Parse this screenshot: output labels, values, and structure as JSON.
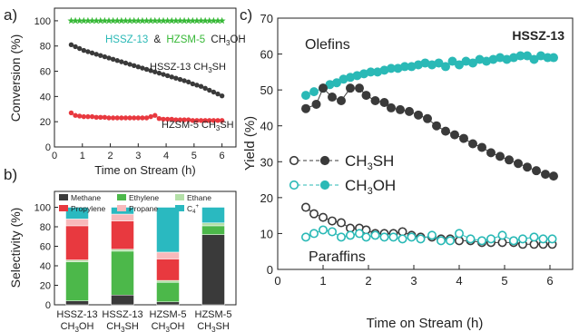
{
  "colors": {
    "green": "#37b837",
    "gray": "#3a3a3a",
    "red": "#e8393f",
    "teal": "#2ab9b6",
    "methane": "#3a3a3a",
    "ethylene": "#4cb84a",
    "ethane": "#b4e0a8",
    "propylene": "#e8393f",
    "propane": "#f8b9bb",
    "c4": "#2ab9c0"
  },
  "chart_data": [
    {
      "panel": "a)",
      "type": "line",
      "xlabel": "Time on Stream (h)",
      "ylabel": "Conversion (%)",
      "xlim": [
        0,
        6.5
      ],
      "ylim": [
        0,
        110
      ],
      "xticks": [
        "0",
        "1",
        "2",
        "3",
        "4",
        "5",
        "6"
      ],
      "yticks": [
        "0",
        "20",
        "40",
        "60",
        "80",
        "100"
      ],
      "legend_text": {
        "part1": "HSSZ-13",
        "amp": "&",
        "part2": "HZSM-5",
        "part3": "CH",
        "sub": "3",
        "part4": "OH"
      },
      "series": [
        {
          "name": "HSSZ-13 & HZSM-5 CH3OH",
          "label_main": "",
          "label_sub": "",
          "marker": "star",
          "x": [
            0.6,
            0.75,
            0.9,
            1.05,
            1.2,
            1.35,
            1.5,
            1.65,
            1.8,
            1.95,
            2.1,
            2.25,
            2.4,
            2.55,
            2.7,
            2.85,
            3.0,
            3.15,
            3.3,
            3.45,
            3.6,
            3.75,
            3.9,
            4.05,
            4.2,
            4.35,
            4.5,
            4.65,
            4.8,
            4.95,
            5.1,
            5.25,
            5.4,
            5.55,
            5.7,
            5.85,
            6.0
          ],
          "y": [
            100,
            100,
            100,
            100,
            100,
            100,
            100,
            100,
            100,
            100,
            100,
            100,
            100,
            100,
            100,
            100,
            100,
            100,
            100,
            100,
            100,
            100,
            100,
            100,
            100,
            100,
            100,
            100,
            100,
            100,
            100,
            100,
            100,
            100,
            100,
            100,
            100
          ]
        },
        {
          "name": "HSSZ-13 CH3SH",
          "label_main": "HSSZ-13 CH",
          "label_sub": "3",
          "label_end": "SH",
          "marker": "circle",
          "x": [
            0.6,
            0.75,
            0.9,
            1.05,
            1.2,
            1.35,
            1.5,
            1.65,
            1.8,
            1.95,
            2.1,
            2.25,
            2.4,
            2.55,
            2.7,
            2.85,
            3.0,
            3.15,
            3.3,
            3.45,
            3.6,
            3.75,
            3.9,
            4.05,
            4.2,
            4.35,
            4.5,
            4.65,
            4.8,
            4.95,
            5.1,
            5.25,
            5.4,
            5.55,
            5.7,
            5.85,
            6.0
          ],
          "y": [
            81,
            79.5,
            78,
            76.5,
            75.5,
            74.5,
            73.5,
            72.5,
            71.5,
            70.5,
            69.5,
            68.5,
            67.5,
            66.5,
            65.5,
            64.5,
            63.5,
            62.5,
            61.5,
            60.5,
            59.5,
            58.5,
            57.5,
            56.5,
            55.5,
            54.5,
            53.5,
            52.5,
            51.5,
            50,
            49,
            48,
            46.5,
            45,
            43.5,
            42,
            40.5
          ]
        },
        {
          "name": "HZSM-5 CH3SH",
          "label_main": "HZSM-5 CH",
          "label_sub": "3",
          "label_end": "SH",
          "marker": "circle",
          "x": [
            0.6,
            0.75,
            0.9,
            1.05,
            1.2,
            1.35,
            1.5,
            1.65,
            1.8,
            1.95,
            2.1,
            2.25,
            2.4,
            2.55,
            2.7,
            2.85,
            3.0,
            3.15,
            3.3,
            3.45,
            3.6,
            3.75,
            3.9,
            4.05,
            4.2,
            4.35,
            4.5,
            4.65,
            4.8,
            4.95,
            5.1,
            5.25,
            5.4,
            5.55,
            5.7,
            5.85,
            6.0
          ],
          "y": [
            27,
            25,
            24.5,
            24,
            24,
            24,
            23.5,
            23.5,
            23.5,
            23,
            23,
            23,
            23,
            23,
            23,
            23,
            23,
            23,
            23,
            24,
            25,
            22.5,
            22,
            22,
            22,
            21.5,
            21.5,
            21.5,
            21.5,
            21,
            21,
            21,
            21,
            21,
            21,
            21,
            21
          ]
        }
      ]
    },
    {
      "panel": "b)",
      "type": "bar",
      "stacked": true,
      "ylabel": "Selectivity (%)",
      "ylim": [
        0,
        100
      ],
      "yticks": [
        "0",
        "20",
        "40",
        "60",
        "80",
        "100"
      ],
      "categories": [
        {
          "line1": "HSSZ-13",
          "line2a": "CH",
          "sub": "3",
          "line2b": "OH"
        },
        {
          "line1": "HSSZ-13",
          "line2a": "CH",
          "sub": "3",
          "line2b": "SH"
        },
        {
          "line1": "HZSM-5",
          "line2a": "CH",
          "sub": "3",
          "line2b": "OH"
        },
        {
          "line1": "HZSM-5",
          "line2a": "CH",
          "sub": "3",
          "line2b": "SH"
        }
      ],
      "legend": [
        {
          "name": "Methane",
          "color_key": "methane"
        },
        {
          "name": "Ethylene",
          "color_key": "ethylene"
        },
        {
          "name": "Ethane",
          "color_key": "ethane"
        },
        {
          "name": "Propylene",
          "color_key": "propylene"
        },
        {
          "name": "Propane",
          "color_key": "propane"
        },
        {
          "name": "C",
          "sub": "4",
          "sup": "+",
          "color_key": "c4"
        }
      ],
      "series": [
        {
          "name": "Methane",
          "color_key": "methane",
          "values": [
            4,
            10,
            3,
            72
          ]
        },
        {
          "name": "Ethylene",
          "color_key": "ethylene",
          "values": [
            40,
            45,
            20,
            9
          ]
        },
        {
          "name": "Ethane",
          "color_key": "ethane",
          "values": [
            2,
            2,
            2,
            3
          ]
        },
        {
          "name": "Propylene",
          "color_key": "propylene",
          "values": [
            35,
            29,
            22,
            0
          ]
        },
        {
          "name": "Propane",
          "color_key": "propane",
          "values": [
            7,
            7,
            7,
            0
          ]
        },
        {
          "name": "C4+",
          "color_key": "c4",
          "values": [
            12,
            7,
            46,
            16
          ]
        }
      ]
    },
    {
      "panel": "c)",
      "type": "scatter",
      "title": "HSSZ-13",
      "xlabel": "Time on Stream (h)",
      "ylabel": "Yield (%)",
      "xlim": [
        0,
        6.5
      ],
      "ylim": [
        0,
        70
      ],
      "xticks": [
        "0",
        "1",
        "2",
        "3",
        "4",
        "5",
        "6"
      ],
      "yticks": [
        "0",
        "10",
        "20",
        "30",
        "40",
        "50",
        "60",
        "70"
      ],
      "annotations": {
        "olefins": "Olefins",
        "paraffins": "Paraffins"
      },
      "legend": [
        {
          "main": "CH",
          "sub": "3",
          "end": "SH",
          "color_key": "gray"
        },
        {
          "main": "CH",
          "sub": "3",
          "end": "OH",
          "color_key": "teal"
        }
      ],
      "series": [
        {
          "name": "CH3OH olefins",
          "color_key": "teal",
          "fill": true,
          "x": [
            0.62,
            0.8,
            1.0,
            1.15,
            1.3,
            1.45,
            1.6,
            1.75,
            1.9,
            2.05,
            2.2,
            2.35,
            2.5,
            2.65,
            2.8,
            2.95,
            3.1,
            3.25,
            3.4,
            3.55,
            3.7,
            3.85,
            4.0,
            4.15,
            4.3,
            4.45,
            4.6,
            4.75,
            4.9,
            5.05,
            5.2,
            5.35,
            5.5,
            5.65,
            5.8,
            5.95,
            6.08
          ],
          "y": [
            48.5,
            49.5,
            50.5,
            51.5,
            52,
            53,
            53.5,
            54,
            54.5,
            55,
            55,
            55.5,
            56,
            56,
            56.5,
            56.5,
            57,
            57.5,
            57,
            57.5,
            56.5,
            58,
            57,
            58,
            57.5,
            58.5,
            58,
            58.5,
            59,
            58.5,
            59,
            59.5,
            59.5,
            58.5,
            59.5,
            59,
            59
          ]
        },
        {
          "name": "CH3SH olefins",
          "color_key": "gray",
          "fill": true,
          "x": [
            0.62,
            0.85,
            1.0,
            1.2,
            1.4,
            1.6,
            1.8,
            1.95,
            2.15,
            2.35,
            2.5,
            2.7,
            2.9,
            3.1,
            3.3,
            3.5,
            3.7,
            3.9,
            4.1,
            4.3,
            4.5,
            4.7,
            4.9,
            5.1,
            5.3,
            5.5,
            5.7,
            5.9,
            6.08
          ],
          "y": [
            44.8,
            46,
            50.5,
            48,
            47,
            50.5,
            50.5,
            48.5,
            47,
            46.5,
            45,
            44.5,
            44,
            43,
            42,
            40,
            38.5,
            37.5,
            36.5,
            35,
            34,
            32.5,
            31.5,
            30.5,
            29.5,
            28.5,
            27.5,
            26.5,
            26
          ]
        },
        {
          "name": "CH3SH paraffins",
          "color_key": "gray",
          "fill": false,
          "x": [
            0.62,
            0.8,
            1.0,
            1.2,
            1.4,
            1.6,
            1.8,
            1.95,
            2.15,
            2.35,
            2.55,
            2.75,
            2.95,
            3.15,
            3.4,
            3.6,
            3.8,
            4.0,
            4.25,
            4.5,
            4.7,
            4.95,
            5.2,
            5.4,
            5.65,
            5.85,
            6.05
          ],
          "y": [
            17.3,
            15.5,
            14.5,
            13.5,
            13,
            11.5,
            11.5,
            11,
            10,
            10,
            10,
            10.5,
            9.5,
            9,
            9,
            8.5,
            8.5,
            8,
            8,
            7.5,
            7.5,
            7.5,
            7.5,
            7,
            7,
            7,
            7
          ]
        },
        {
          "name": "CH3OH paraffins",
          "color_key": "teal",
          "fill": false,
          "x": [
            0.62,
            0.8,
            1.0,
            1.2,
            1.4,
            1.6,
            1.8,
            1.95,
            2.15,
            2.35,
            2.55,
            2.75,
            2.95,
            3.15,
            3.4,
            3.6,
            3.8,
            4.0,
            4.25,
            4.5,
            4.7,
            4.95,
            5.2,
            5.4,
            5.65,
            5.85,
            6.05
          ],
          "y": [
            9,
            10,
            11,
            10.5,
            9,
            9.5,
            10,
            9,
            9.5,
            9,
            9,
            8.5,
            9,
            8.5,
            9.5,
            8,
            8,
            10,
            8.5,
            8,
            8.5,
            9.5,
            8,
            8.5,
            9,
            8.5,
            8.5
          ]
        }
      ]
    }
  ]
}
